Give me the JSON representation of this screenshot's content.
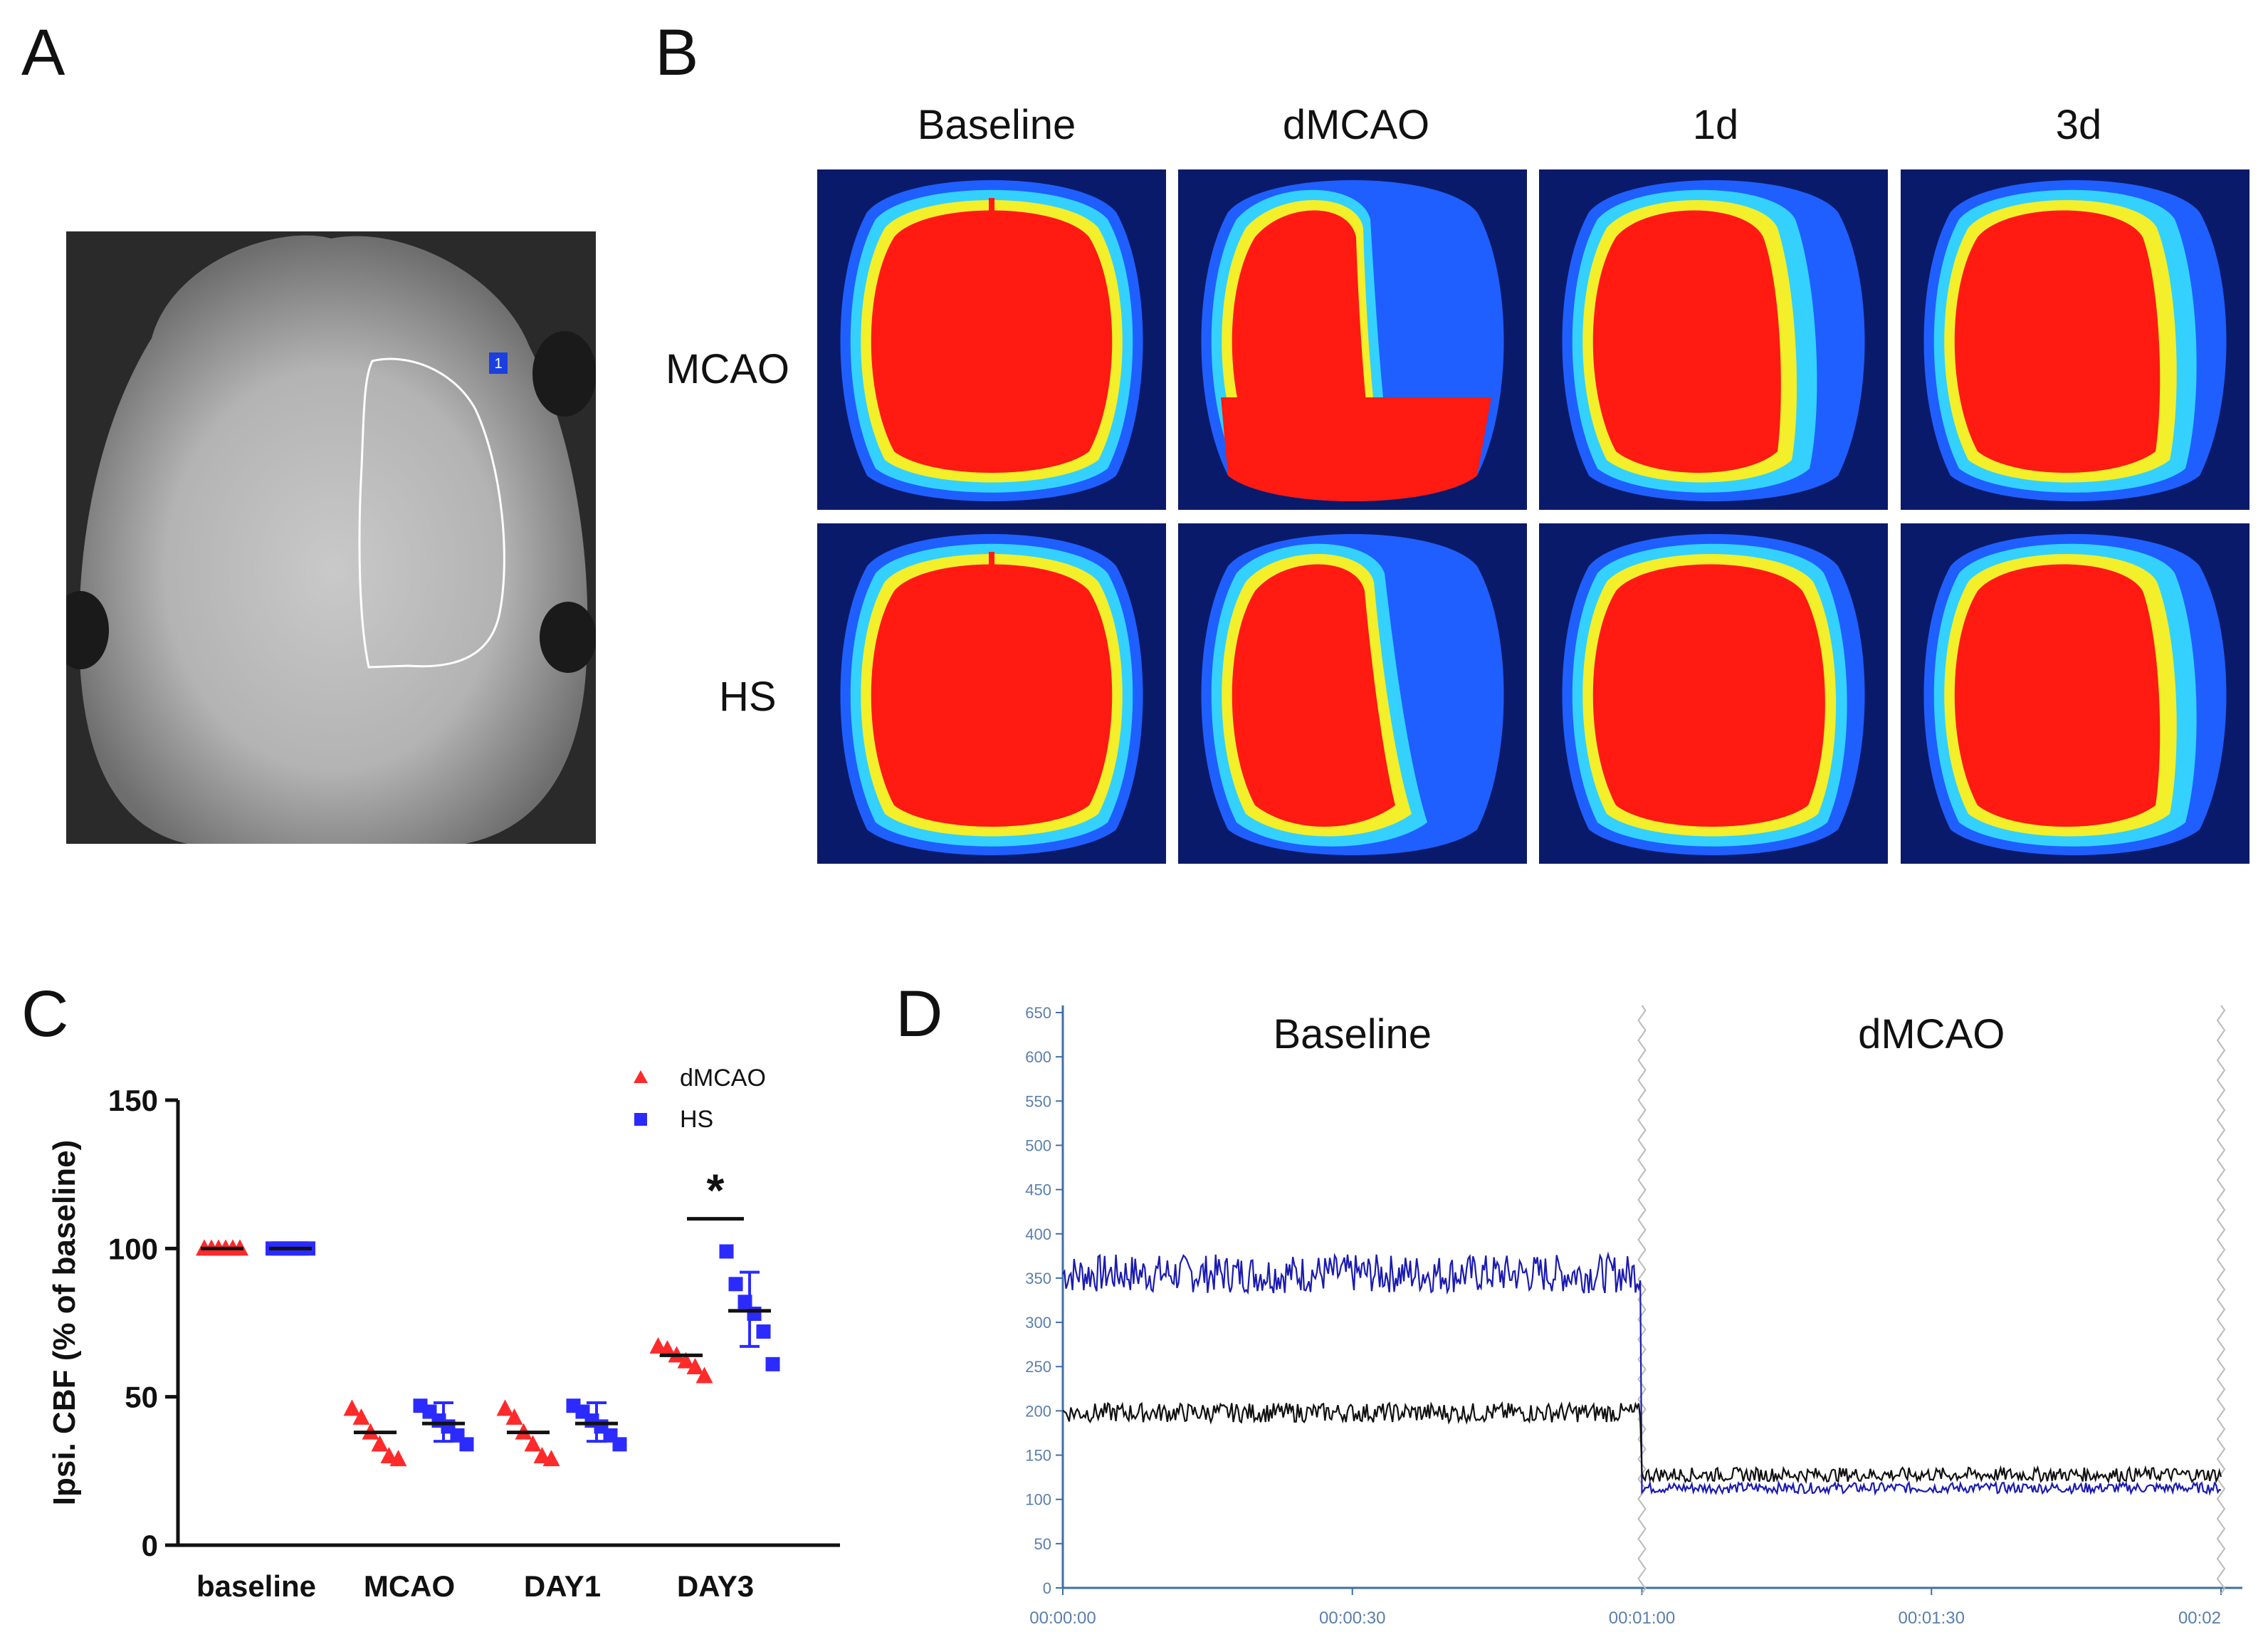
{
  "panels": {
    "a": {
      "letter": "A",
      "roi_label": "1"
    },
    "b": {
      "letter": "B",
      "columns": [
        "Baseline",
        "dMCAO",
        "1d",
        "3d"
      ],
      "rows": [
        "MCAO",
        "HS"
      ]
    },
    "c": {
      "letter": "C"
    },
    "d": {
      "letter": "D"
    }
  },
  "colors": {
    "dmcao": "#ff2a2a",
    "hs": "#2b2bff",
    "trace_blue": "#1b1bb0",
    "trace_black": "#111111",
    "axis_blue": "#3f6fa5"
  },
  "chart_data": [
    {
      "type": "scatter",
      "panel": "C",
      "ylabel": "Ipsi. CBF (% of baseline)",
      "xlabel": "",
      "ylim": [
        0,
        150
      ],
      "yticks": [
        0,
        50,
        100,
        150
      ],
      "categories": [
        "baseline",
        "MCAO",
        "DAY1",
        "DAY3"
      ],
      "legend": [
        "dMCAO",
        "HS"
      ],
      "legend_position": "top-right",
      "annotation": "*",
      "series": [
        {
          "name": "dMCAO",
          "marker": "triangle",
          "points": [
            [
              100,
              100,
              100,
              100,
              100,
              100
            ],
            [
              46,
              43,
              38,
              34,
              30,
              29
            ],
            [
              46,
              43,
              38,
              34,
              30,
              29
            ],
            [
              67,
              66,
              64,
              62,
              60,
              57
            ]
          ],
          "mean": [
            100,
            38,
            38,
            64
          ]
        },
        {
          "name": "HS",
          "marker": "square",
          "points": [
            [
              100,
              100,
              100,
              100,
              100,
              100
            ],
            [
              47,
              45,
              42,
              40,
              37,
              34
            ],
            [
              47,
              45,
              42,
              40,
              37,
              34
            ],
            [
              99,
              88,
              82,
              78,
              72,
              61
            ]
          ],
          "mean": [
            100,
            41,
            41,
            79
          ],
          "error": [
            [
              100,
              100
            ],
            [
              35,
              48
            ],
            [
              35,
              48
            ],
            [
              67,
              92
            ]
          ]
        }
      ]
    },
    {
      "type": "line",
      "panel": "D",
      "title_left": "Baseline",
      "title_right": "dMCAO",
      "ylim": [
        0,
        650
      ],
      "yticks": [
        "0",
        "50",
        "100",
        "150",
        "200",
        "250",
        "300",
        "350",
        "400",
        "450",
        "500",
        "550",
        "600",
        "650"
      ],
      "xticks": [
        "00:00:00",
        "00:00:30",
        "00:01:00",
        "00:01:30",
        "00:02"
      ],
      "x_range_seconds": [
        0,
        120
      ],
      "event_seconds": 60,
      "series": [
        {
          "name": "blue trace",
          "before_mean": 355,
          "before_amplitude": 22,
          "after_mean": 113,
          "after_amplitude": 6
        },
        {
          "name": "black trace",
          "before_mean": 198,
          "before_amplitude": 11,
          "after_mean": 128,
          "after_amplitude": 8
        }
      ]
    }
  ]
}
